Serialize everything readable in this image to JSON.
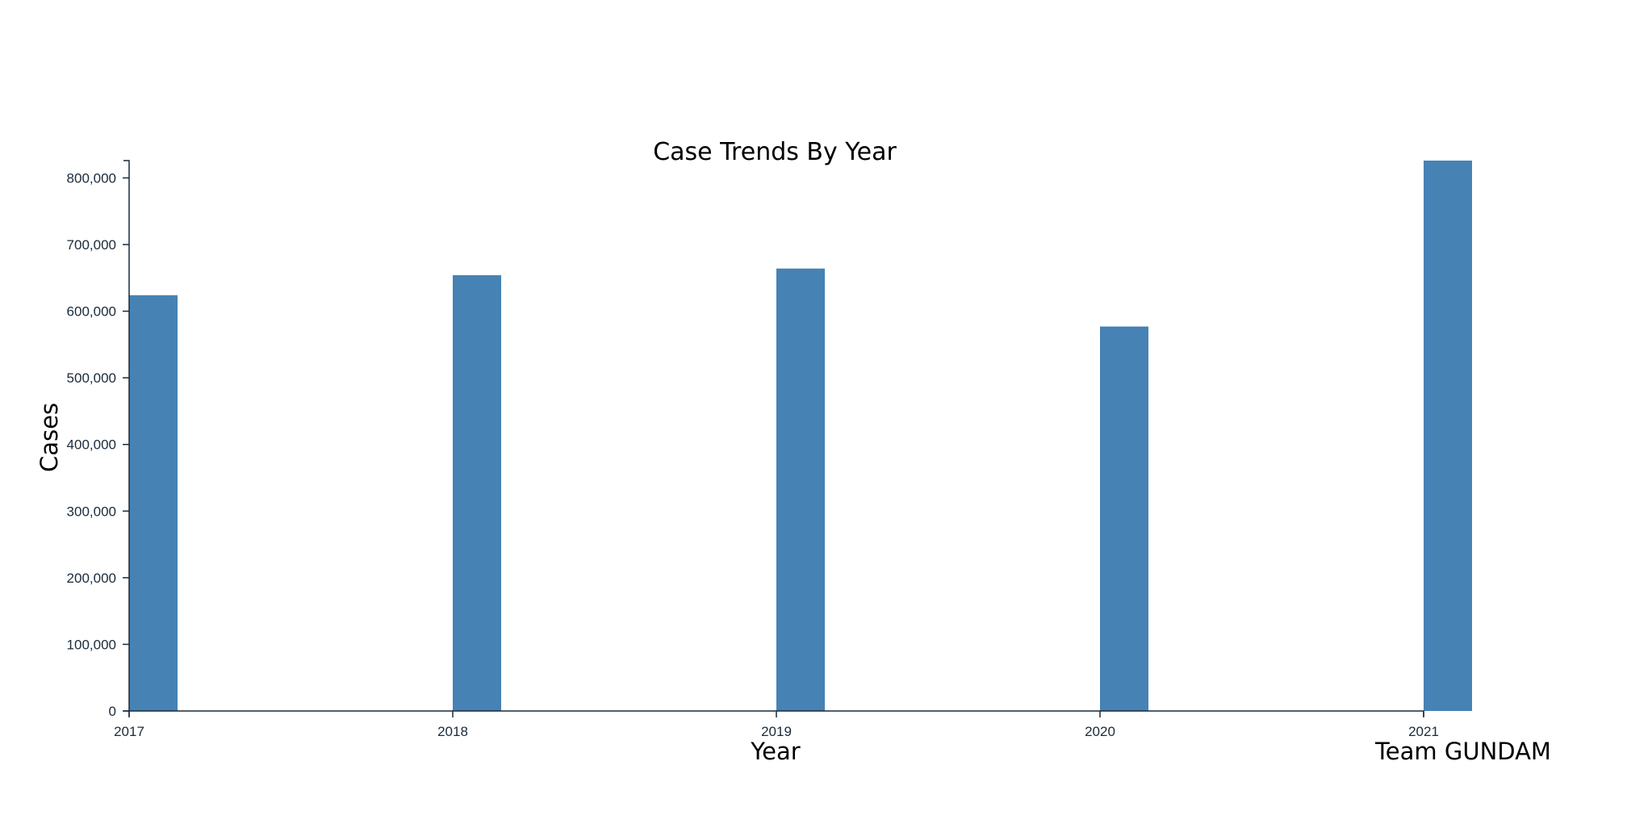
{
  "chart_data": {
    "type": "bar",
    "title": "Case Trends By Year",
    "xlabel": "Year",
    "ylabel": "Cases",
    "categories": [
      "2017",
      "2018",
      "2019",
      "2020",
      "2021"
    ],
    "values": [
      624000,
      654000,
      664000,
      577000,
      826000
    ],
    "ylim": [
      0,
      826000
    ],
    "yticks": [
      0,
      100000,
      200000,
      300000,
      400000,
      500000,
      600000,
      700000,
      800000
    ],
    "ytick_labels": [
      "0",
      "100,000",
      "200,000",
      "300,000",
      "400,000",
      "500,000",
      "600,000",
      "700,000",
      "800,000"
    ],
    "grid": false,
    "bar_color": "#4682b4",
    "axis_color": "#1a2a3a"
  },
  "credit": "Team GUNDAM"
}
